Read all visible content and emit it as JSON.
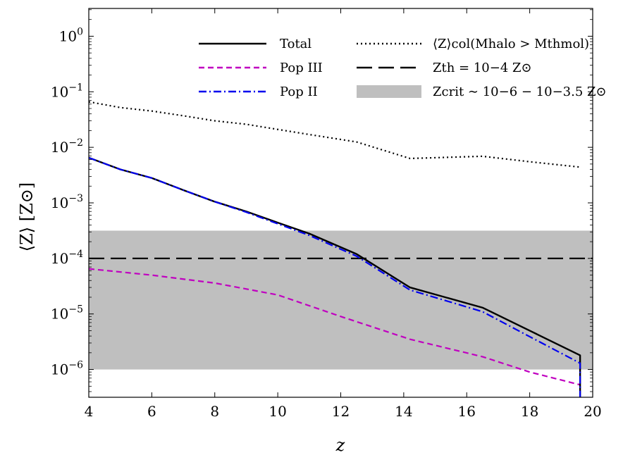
{
  "chart_data": {
    "type": "line",
    "xlabel": "z",
    "ylabel": "⟨Z⟩ [Z⊙]",
    "xlim": [
      4,
      20
    ],
    "ylim_log10": [
      -6.5,
      0.5
    ],
    "xscale": "linear",
    "yscale": "log",
    "x_ticks": [
      4,
      6,
      8,
      10,
      12,
      14,
      16,
      18,
      20
    ],
    "y_ticks": [
      {
        "exp": 0,
        "label_base": "10",
        "label_exp": "0"
      },
      {
        "exp": -1,
        "label_base": "10",
        "label_exp": "−1"
      },
      {
        "exp": -2,
        "label_base": "10",
        "label_exp": "−2"
      },
      {
        "exp": -3,
        "label_base": "10",
        "label_exp": "−3"
      },
      {
        "exp": -4,
        "label_base": "10",
        "label_exp": "−4"
      },
      {
        "exp": -5,
        "label_base": "10",
        "label_exp": "−5"
      },
      {
        "exp": -6,
        "label_base": "10",
        "label_exp": "−6"
      }
    ],
    "band": {
      "name": "Z_crit ~ 10^-6 − 10^-3.5 Z⊙",
      "ymin": 1e-06,
      "ymax": 0.000316,
      "color": "#bfbfbf"
    },
    "hline": {
      "name": "Z_th = 10^-4 Z⊙",
      "y": 0.0001,
      "color": "#000000"
    },
    "series": [
      {
        "name": "Total",
        "color": "#000000",
        "style": "solid",
        "x": [
          4,
          5,
          6,
          7,
          8,
          9,
          10,
          11,
          12.5,
          14.2,
          16.5,
          18,
          19.6,
          19.6
        ],
        "y": [
          0.0065,
          0.004,
          0.0028,
          0.0017,
          0.00105,
          0.0007,
          0.00044,
          0.00028,
          0.00012,
          3e-05,
          1.3e-05,
          5e-06,
          1.8e-06,
          3e-07
        ]
      },
      {
        "name": "Pop III",
        "color": "#c000c0",
        "style": "dashed",
        "x": [
          4,
          6,
          8,
          10,
          12,
          14.2,
          16.5,
          18,
          19.6
        ],
        "y": [
          6.5e-05,
          5e-05,
          3.6e-05,
          2.2e-05,
          9e-06,
          3.5e-06,
          1.7e-06,
          9e-07,
          5.3e-07
        ]
      },
      {
        "name": "Pop II",
        "color": "#0000ee",
        "style": "dashdot",
        "x": [
          4,
          5,
          6,
          7,
          8,
          9,
          10,
          11,
          12.5,
          14.2,
          16.5,
          18,
          19.6,
          19.6
        ],
        "y": [
          0.0065,
          0.004,
          0.0028,
          0.0017,
          0.00105,
          0.00068,
          0.00042,
          0.00026,
          0.00011,
          2.7e-05,
          1.1e-05,
          3.9e-06,
          1.3e-06,
          3e-07
        ]
      },
      {
        "name": "⟨Z⟩col(M_halo > M_th^mol)",
        "color": "#000000",
        "style": "dotted",
        "x": [
          4,
          5,
          6,
          7,
          8,
          9,
          10,
          11,
          12.5,
          14.2,
          16.5,
          18,
          19.6
        ],
        "y": [
          0.066,
          0.052,
          0.045,
          0.037,
          0.03,
          0.026,
          0.021,
          0.017,
          0.0125,
          0.0063,
          0.0069,
          0.0055,
          0.0044
        ]
      }
    ],
    "legend_left": [
      {
        "label": "Total",
        "color": "#000000",
        "style": "solid"
      },
      {
        "label": "Pop III",
        "color": "#c000c0",
        "style": "dashed"
      },
      {
        "label": "Pop II",
        "color": "#0000ee",
        "style": "dashdot"
      }
    ],
    "legend_right": [
      {
        "label": "⟨Z⟩col(Mhalo > Mthmol)",
        "color": "#000000",
        "style": "dotted"
      },
      {
        "label": "Zth = 10−4 Z⊙",
        "color": "#000000",
        "style": "longdash"
      },
      {
        "label": "Zcrit ∼ 10−6 − 10−3.5 Z⊙",
        "color": "#bfbfbf",
        "style": "patch"
      }
    ]
  }
}
